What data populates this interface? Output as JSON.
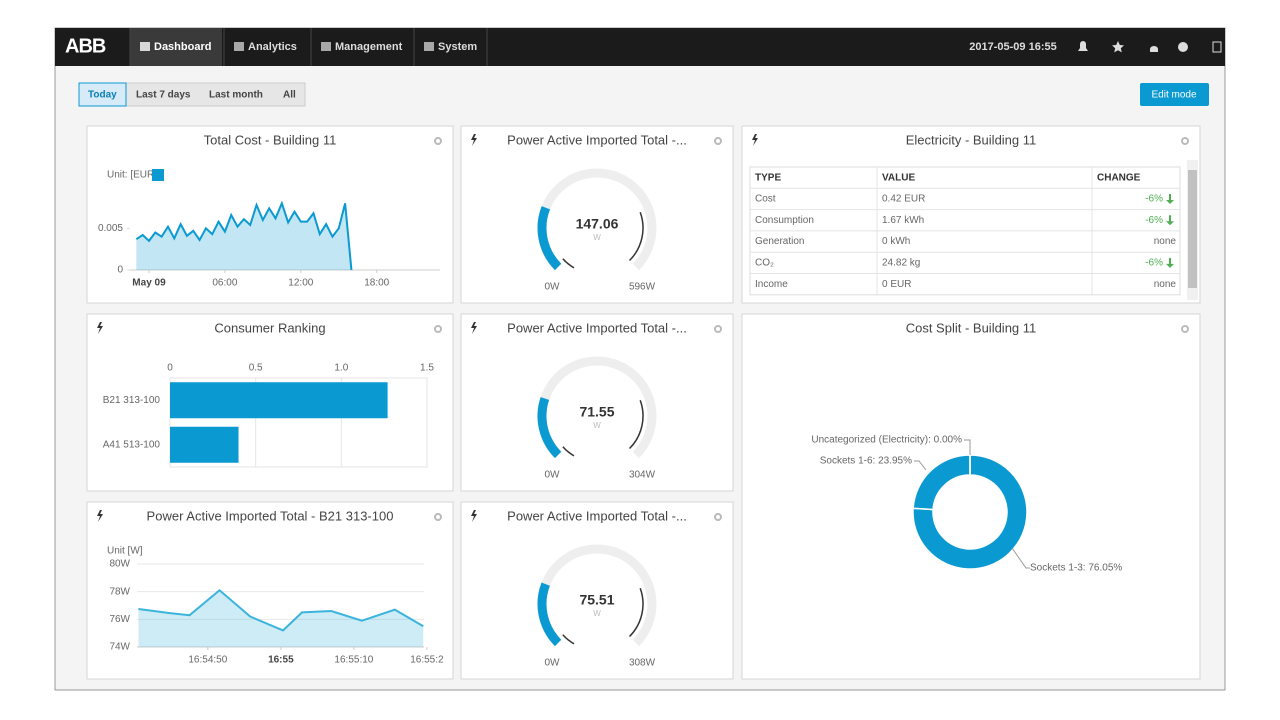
{
  "nav": {
    "logo": "ABB",
    "items": [
      "Dashboard",
      "Analytics",
      "Management",
      "System"
    ],
    "datetime": "2017-05-09 16:55"
  },
  "toolbar": {
    "ranges": [
      "Today",
      "Last 7 days",
      "Last month",
      "All"
    ],
    "edit": "Edit mode"
  },
  "table": {
    "title": "Electricity - Building 11",
    "columns": [
      "TYPE",
      "VALUE",
      "CHANGE"
    ],
    "rows": [
      [
        "Cost",
        "0.42 EUR",
        "-6%"
      ],
      [
        "Consumption",
        "1.67 kWh",
        "-6%"
      ],
      [
        "Generation",
        "0 kWh",
        "none"
      ],
      [
        "CO₂",
        "24.82 kg",
        "-6%"
      ],
      [
        "Income",
        "0 EUR",
        "none"
      ]
    ]
  },
  "chart_data": [
    {
      "type": "area",
      "title": "Total Cost - Building 11",
      "y_label": "Unit: [EUR]",
      "color": "#0a9ad1",
      "x": [
        -1,
        -0.5,
        0,
        0.5,
        1,
        1.5,
        2,
        2.5,
        3,
        3.5,
        4,
        4.5,
        5,
        5.5,
        6,
        6.5,
        7,
        7.5,
        8,
        8.5,
        9,
        9.5,
        10,
        10.5,
        11,
        11.5,
        12,
        12.5,
        13,
        13.5,
        14,
        14.5,
        15,
        15.5,
        16
      ],
      "values": [
        0.0037,
        0.0042,
        0.0035,
        0.0045,
        0.004,
        0.0052,
        0.0038,
        0.0055,
        0.0041,
        0.0047,
        0.0036,
        0.005,
        0.0043,
        0.0058,
        0.0046,
        0.0066,
        0.0052,
        0.0061,
        0.0054,
        0.0078,
        0.006,
        0.0074,
        0.0062,
        0.008,
        0.0057,
        0.007,
        0.0058,
        0.0058,
        0.0068,
        0.0043,
        0.0055,
        0.004,
        0.005,
        0.008,
        0
      ],
      "xlim": [
        -1.5,
        23
      ],
      "xticks": [
        {
          "value": 0,
          "label": "May 09"
        },
        {
          "value": 6,
          "label": "06:00"
        },
        {
          "value": 12,
          "label": "12:00"
        },
        {
          "value": 18,
          "label": "18:00"
        }
      ],
      "ylim": [
        0,
        0.012
      ],
      "yticks": [
        0,
        0.005
      ],
      "grid": false
    },
    {
      "type": "gauge",
      "title": "Power Active Imported Total -...",
      "value": 147.06,
      "unit": "W",
      "min": 0,
      "max": 596,
      "min_label": "0W",
      "max_label": "596W",
      "color": "#0a9ad1"
    },
    {
      "type": "gauge",
      "title": "Power Active Imported Total -...",
      "value": 71.55,
      "unit": "W",
      "min": 0,
      "max": 304,
      "min_label": "0W",
      "max_label": "304W",
      "color": "#0a9ad1"
    },
    {
      "type": "gauge",
      "title": "Power Active Imported Total -...",
      "value": 75.51,
      "unit": "W",
      "min": 0,
      "max": 308,
      "min_label": "0W",
      "max_label": "308W",
      "color": "#0a9ad1"
    },
    {
      "type": "hbar",
      "title": "Consumer Ranking",
      "categories": [
        "B21 313-100",
        "A41 513-100"
      ],
      "values": [
        1.27,
        0.4
      ],
      "color": "#0a9ad1",
      "xlim": [
        0,
        1.5
      ],
      "xticks": [
        0,
        0.5,
        {
          "value": 1,
          "label": "1.0"
        },
        1.5
      ],
      "grid": true
    },
    {
      "type": "area",
      "title": "Power Active Imported Total - B21 313-100",
      "y_label": "Unit [W]",
      "color": "#3bb4dc",
      "x": [
        40.5,
        44.8,
        47.5,
        51.6,
        55.8,
        60.3,
        62.9,
        66.9,
        71.1,
        75.6,
        79.5
      ],
      "values": [
        76.75,
        76.45,
        76.3,
        78.1,
        76.2,
        75.2,
        76.5,
        76.6,
        75.9,
        76.7,
        75.5
      ],
      "xlim": [
        40.3,
        79.6
      ],
      "xticks": [
        {
          "value": 50,
          "label": "16:54:50"
        },
        {
          "value": 60,
          "label": "16:55"
        },
        {
          "value": 70,
          "label": "16:55:10"
        },
        {
          "value": 80,
          "label": "16:55:2"
        }
      ],
      "ylim": [
        74,
        80
      ],
      "yticks": [
        {
          "value": 74,
          "label": "74W"
        },
        {
          "value": 76,
          "label": "76W"
        },
        {
          "value": 78,
          "label": "78W"
        },
        {
          "value": 80,
          "label": "80W"
        }
      ],
      "grid": true
    },
    {
      "type": "donut",
      "title": "Cost Split - Building 11",
      "color": "#0a9ad1",
      "values": [
        76.05,
        23.95,
        0
      ],
      "value_labels": [
        "Sockets 1-3: 76.05%",
        "Sockets 1-6: 23.95%",
        "Uncategorized (Electricity): 0.00%"
      ]
    }
  ]
}
